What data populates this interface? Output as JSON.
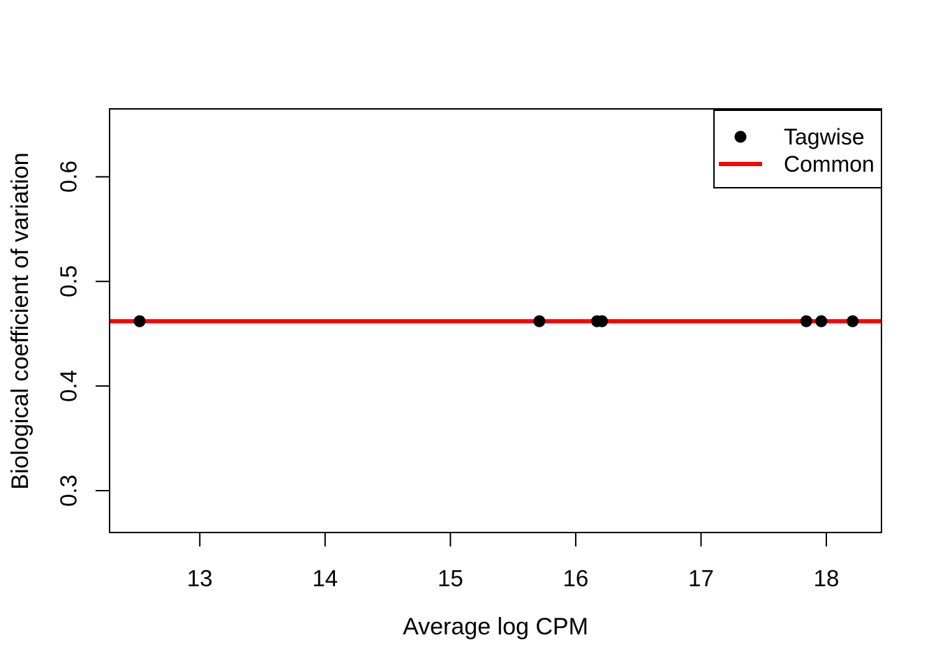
{
  "chart_data": {
    "type": "scatter",
    "title": "",
    "xlabel": "Average log CPM",
    "ylabel": "Biological coefficient of variation",
    "xlim": [
      12.28,
      18.44
    ],
    "ylim": [
      0.26,
      0.665
    ],
    "x_ticks": [
      13,
      14,
      15,
      16,
      17,
      18
    ],
    "y_ticks": [
      0.3,
      0.4,
      0.5,
      0.6
    ],
    "grid": false,
    "colors": {
      "points": "#000000",
      "common_line": "#FF0000",
      "frame": "#000000"
    },
    "series": [
      {
        "name": "Tagwise",
        "type": "scatter",
        "marker": "filled-circle",
        "color": "#000000",
        "points": [
          {
            "x": 12.52,
            "y": 0.462
          },
          {
            "x": 15.71,
            "y": 0.462
          },
          {
            "x": 16.17,
            "y": 0.462
          },
          {
            "x": 16.21,
            "y": 0.462
          },
          {
            "x": 17.84,
            "y": 0.462
          },
          {
            "x": 17.96,
            "y": 0.462
          },
          {
            "x": 18.21,
            "y": 0.462
          }
        ]
      },
      {
        "name": "Common",
        "type": "hline",
        "color": "#FF0000",
        "y": 0.462
      }
    ],
    "legend": {
      "position": "top-right",
      "entries": [
        {
          "label": "Tagwise",
          "marker": "point",
          "color": "#000000"
        },
        {
          "label": "Common",
          "marker": "line",
          "color": "#FF0000"
        }
      ]
    }
  }
}
